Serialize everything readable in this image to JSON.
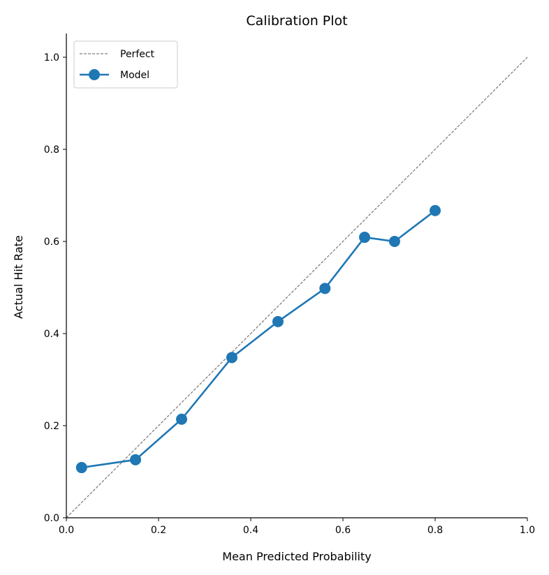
{
  "chart_data": {
    "type": "line",
    "title": "Calibration Plot",
    "xlabel": "Mean Predicted Probability",
    "ylabel": "Actual Hit Rate",
    "xlim": [
      0.0,
      1.0
    ],
    "ylim": [
      0.0,
      1.05
    ],
    "xticks": [
      "0.0",
      "0.2",
      "0.4",
      "0.6",
      "0.8",
      "1.0"
    ],
    "yticks": [
      "0.0",
      "0.2",
      "0.4",
      "0.6",
      "0.8",
      "1.0"
    ],
    "grid": false,
    "legend_position": "top-left",
    "series": [
      {
        "name": "Perfect",
        "style": "dashed",
        "color": "#808080",
        "x": [
          0,
          1
        ],
        "y": [
          0,
          1
        ]
      },
      {
        "name": "Model",
        "style": "line-marker",
        "color": "#1f77b4",
        "x": [
          0.033,
          0.15,
          0.25,
          0.359,
          0.459,
          0.561,
          0.647,
          0.712,
          0.8
        ],
        "y": [
          0.109,
          0.126,
          0.214,
          0.348,
          0.426,
          0.498,
          0.609,
          0.6,
          0.667
        ]
      }
    ]
  }
}
